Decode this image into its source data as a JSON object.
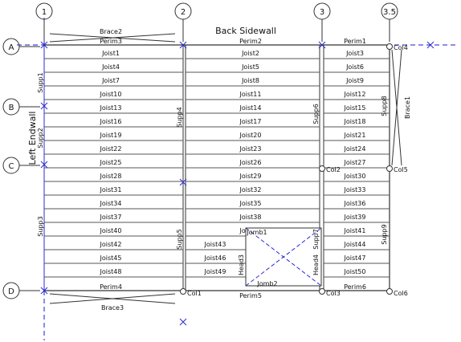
{
  "colors": {
    "line": "#444444",
    "grid": "#1a1acc",
    "marker": "#2b2bd0",
    "bg": "#ffffff"
  },
  "grid_columns": [
    {
      "id": "col-1",
      "label": "1"
    },
    {
      "id": "col-2",
      "label": "2"
    },
    {
      "id": "col-3",
      "label": "3"
    },
    {
      "id": "col-35",
      "label": "3.5"
    }
  ],
  "grid_rows": [
    {
      "id": "row-a",
      "label": "A"
    },
    {
      "id": "row-b",
      "label": "B"
    },
    {
      "id": "row-c",
      "label": "C"
    },
    {
      "id": "row-d",
      "label": "D"
    }
  ],
  "wall_titles": {
    "back": "Back Sidewall",
    "left": "Left Endwall"
  },
  "bays": [
    {
      "joists": [
        "Joist1",
        "Joist4",
        "Joist7",
        "Joist10",
        "Joist13",
        "Joist16",
        "Joist19",
        "Joist22",
        "Joist25",
        "Joist28",
        "Joist31",
        "Joist34",
        "Joist37",
        "Joist40",
        "Joist42",
        "Joist45",
        "Joist48"
      ]
    },
    {
      "joists": [
        "Joist2",
        "Joist5",
        "Joist8",
        "Joist11",
        "Joist14",
        "Joist17",
        "Joist20",
        "Joist23",
        "Joist26",
        "Joist29",
        "Joist32",
        "Joist35",
        "Joist38",
        "Joist41"
      ]
    },
    {
      "joists": [
        "Joist3",
        "Joist6",
        "Joist9",
        "Joist12",
        "Joist15",
        "Joist18",
        "Joist21",
        "Joist24",
        "Joist27",
        "Joist30",
        "Joist33",
        "Joist36",
        "Joist39",
        "Joist41",
        "Joist44",
        "Joist47",
        "Joist50"
      ]
    }
  ],
  "opening_joists": [
    "Joist43",
    "Joist46",
    "Joist49"
  ],
  "labels": {
    "brace2": "Brace2",
    "brace1": "Brace1",
    "brace3": "Brace3",
    "perim1": "Perim1",
    "perim2": "Perim2",
    "perim3": "Perim3",
    "perim4": "Perim4",
    "perim5": "Perim5",
    "perim6": "Perim6",
    "supp1": "Supp1",
    "supp2": "Supp2",
    "supp3": "Supp3",
    "supp4": "Supp4",
    "supp5": "Supp5",
    "supp6": "Supp6",
    "supp7": "Supp7",
    "supp8": "Supp8",
    "supp9": "Supp9",
    "col1": "Col1",
    "col2": "Col2",
    "col3": "Col3",
    "col4": "Col4",
    "col5": "Col5",
    "col6": "Col6",
    "jomb1": "Jomb1",
    "jomb2": "Jomb2",
    "head3": "Head3",
    "head4": "Head4"
  }
}
